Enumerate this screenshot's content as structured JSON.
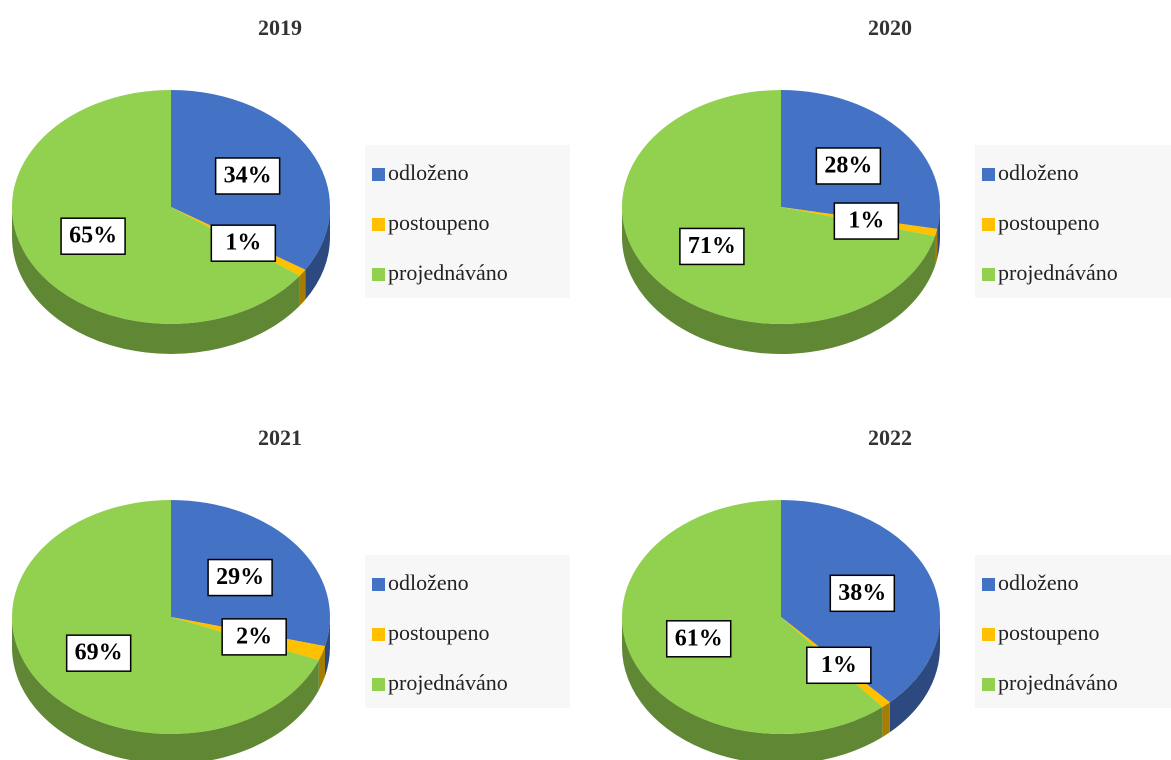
{
  "chart_data": [
    {
      "type": "pie",
      "title": "2019",
      "categories": [
        "odloženo",
        "postoupeno",
        "projednáváno"
      ],
      "values": [
        34,
        1,
        65
      ],
      "value_labels": [
        "34%",
        "1%",
        "65%"
      ],
      "colors": [
        "#4472c4",
        "#ffc000",
        "#92d050"
      ]
    },
    {
      "type": "pie",
      "title": "2020",
      "categories": [
        "odloženo",
        "postoupeno",
        "projednáváno"
      ],
      "values": [
        28,
        1,
        71
      ],
      "value_labels": [
        "28%",
        "1%",
        "71%"
      ],
      "colors": [
        "#4472c4",
        "#ffc000",
        "#92d050"
      ]
    },
    {
      "type": "pie",
      "title": "2021",
      "categories": [
        "odloženo",
        "postoupeno",
        "projednáváno"
      ],
      "values": [
        29,
        2,
        69
      ],
      "value_labels": [
        "29%",
        "2%",
        "69%"
      ],
      "colors": [
        "#4472c4",
        "#ffc000",
        "#92d050"
      ]
    },
    {
      "type": "pie",
      "title": "2022",
      "categories": [
        "odloženo",
        "postoupeno",
        "projednáváno"
      ],
      "values": [
        38,
        1,
        61
      ],
      "value_labels": [
        "38%",
        "1%",
        "61%"
      ],
      "colors": [
        "#4472c4",
        "#ffc000",
        "#92d050"
      ]
    }
  ]
}
